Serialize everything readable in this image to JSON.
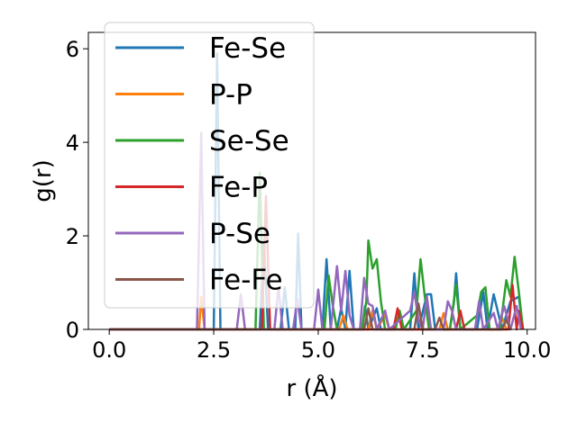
{
  "chart_data": {
    "type": "line",
    "xlabel": "r (Å)",
    "ylabel": "g(r)",
    "xlim": [
      -0.5,
      10.2
    ],
    "ylim": [
      0,
      6.35
    ],
    "xticks": [
      0.0,
      2.5,
      5.0,
      7.5,
      10.0
    ],
    "xtick_labels": [
      "0.0",
      "2.5",
      "5.0",
      "7.5",
      "10.0"
    ],
    "yticks": [
      0,
      2,
      4,
      6
    ],
    "ytick_labels": [
      "0",
      "2",
      "4",
      "6"
    ],
    "grid": false,
    "legend_position": "upper-left",
    "series": [
      {
        "name": "Fe-Se",
        "color": "#1f77b4",
        "points": [
          [
            0,
            0
          ],
          [
            2.5,
            0
          ],
          [
            2.58,
            5.9
          ],
          [
            2.66,
            0
          ],
          [
            3.6,
            0
          ],
          [
            3.7,
            1.9
          ],
          [
            3.8,
            0
          ],
          [
            4.1,
            0
          ],
          [
            4.2,
            0.9
          ],
          [
            4.3,
            0
          ],
          [
            4.45,
            0
          ],
          [
            4.52,
            2.05
          ],
          [
            4.6,
            0
          ],
          [
            5.1,
            0
          ],
          [
            5.2,
            1.5
          ],
          [
            5.3,
            0
          ],
          [
            5.45,
            0
          ],
          [
            5.55,
            0.45
          ],
          [
            5.65,
            0
          ],
          [
            5.75,
            1.25
          ],
          [
            5.85,
            0
          ],
          [
            6.05,
            0
          ],
          [
            6.12,
            0.5
          ],
          [
            6.2,
            0
          ],
          [
            6.4,
            0.45
          ],
          [
            6.5,
            0
          ],
          [
            7.2,
            0
          ],
          [
            7.3,
            1.2
          ],
          [
            7.4,
            0
          ],
          [
            7.6,
            0.75
          ],
          [
            7.7,
            0.75
          ],
          [
            7.8,
            0
          ],
          [
            8.15,
            0
          ],
          [
            8.25,
            0.6
          ],
          [
            8.3,
            1.2
          ],
          [
            8.4,
            0
          ],
          [
            8.8,
            0
          ],
          [
            8.95,
            0.8
          ],
          [
            9.05,
            0
          ],
          [
            9.2,
            0.75
          ],
          [
            9.4,
            0
          ],
          [
            9.6,
            0.6
          ],
          [
            9.8,
            0.7
          ],
          [
            9.9,
            0
          ]
        ]
      },
      {
        "name": "P-P",
        "color": "#ff7f0e",
        "points": [
          [
            0,
            0
          ],
          [
            2.15,
            0
          ],
          [
            2.2,
            0.7
          ],
          [
            2.28,
            0
          ],
          [
            5.5,
            0
          ],
          [
            5.6,
            0.3
          ],
          [
            5.7,
            0
          ],
          [
            6.2,
            0
          ],
          [
            6.3,
            0.4
          ],
          [
            6.4,
            0
          ],
          [
            6.6,
            0.3
          ],
          [
            6.7,
            0
          ],
          [
            7.9,
            0
          ],
          [
            8.0,
            0.35
          ],
          [
            8.1,
            0
          ],
          [
            9.3,
            0
          ],
          [
            9.4,
            0.25
          ],
          [
            9.5,
            0
          ]
        ]
      },
      {
        "name": "Se-Se",
        "color": "#2ca02c",
        "points": [
          [
            0,
            0
          ],
          [
            3.5,
            0
          ],
          [
            3.6,
            3.35
          ],
          [
            3.7,
            0
          ],
          [
            5.15,
            0
          ],
          [
            5.25,
            1.15
          ],
          [
            5.35,
            0.5
          ],
          [
            5.45,
            0
          ],
          [
            6.05,
            0
          ],
          [
            6.15,
            0.6
          ],
          [
            6.2,
            1.9
          ],
          [
            6.3,
            1.3
          ],
          [
            6.4,
            1.5
          ],
          [
            6.5,
            0.6
          ],
          [
            6.6,
            0
          ],
          [
            6.85,
            0
          ],
          [
            6.95,
            0.4
          ],
          [
            7.05,
            0
          ],
          [
            7.35,
            0.4
          ],
          [
            7.45,
            1.5
          ],
          [
            7.55,
            0.7
          ],
          [
            7.65,
            0
          ],
          [
            8.15,
            0
          ],
          [
            8.3,
            0.95
          ],
          [
            8.4,
            0
          ],
          [
            8.8,
            0.3
          ],
          [
            8.9,
            0.8
          ],
          [
            9.0,
            0.9
          ],
          [
            9.1,
            0
          ],
          [
            9.35,
            0
          ],
          [
            9.5,
            1.05
          ],
          [
            9.6,
            0.7
          ],
          [
            9.7,
            1.55
          ],
          [
            9.8,
            0.8
          ],
          [
            9.9,
            0
          ]
        ]
      },
      {
        "name": "Fe-P",
        "color": "#d62728",
        "points": [
          [
            0,
            0
          ],
          [
            3.65,
            0
          ],
          [
            3.75,
            2.85
          ],
          [
            3.85,
            0
          ],
          [
            6.8,
            0
          ],
          [
            6.9,
            0.45
          ],
          [
            7.0,
            0
          ],
          [
            8.3,
            0
          ],
          [
            8.4,
            0.4
          ],
          [
            8.5,
            0
          ],
          [
            9.55,
            0
          ],
          [
            9.65,
            0.95
          ],
          [
            9.75,
            0
          ],
          [
            9.8,
            0.4
          ],
          [
            9.9,
            0
          ]
        ]
      },
      {
        "name": "P-Se",
        "color": "#9467bd",
        "points": [
          [
            0,
            0
          ],
          [
            2.1,
            0
          ],
          [
            2.2,
            4.2
          ],
          [
            2.28,
            0
          ],
          [
            3.05,
            0
          ],
          [
            3.15,
            0.75
          ],
          [
            3.25,
            0
          ],
          [
            3.95,
            0
          ],
          [
            4.05,
            0.9
          ],
          [
            4.15,
            0
          ],
          [
            4.4,
            0
          ],
          [
            4.5,
            0.65
          ],
          [
            4.6,
            0
          ],
          [
            4.9,
            0
          ],
          [
            5.0,
            0.85
          ],
          [
            5.1,
            0
          ],
          [
            5.3,
            0
          ],
          [
            5.45,
            1.35
          ],
          [
            5.55,
            0.4
          ],
          [
            5.65,
            1.25
          ],
          [
            5.75,
            0.3
          ],
          [
            5.85,
            0
          ],
          [
            6.0,
            0
          ],
          [
            6.1,
            1.1
          ],
          [
            6.2,
            0.55
          ],
          [
            6.3,
            0.5
          ],
          [
            6.4,
            0
          ],
          [
            6.6,
            0.4
          ],
          [
            6.7,
            0
          ],
          [
            7.2,
            0.4
          ],
          [
            7.3,
            0.8
          ],
          [
            7.4,
            0.2
          ],
          [
            7.5,
            0
          ],
          [
            7.6,
            0.7
          ],
          [
            7.7,
            0
          ],
          [
            8.0,
            0
          ],
          [
            8.1,
            0.6
          ],
          [
            8.2,
            0.4
          ],
          [
            8.3,
            0
          ],
          [
            8.75,
            0
          ],
          [
            8.85,
            0.6
          ],
          [
            8.95,
            0
          ],
          [
            9.2,
            0.35
          ],
          [
            9.3,
            0
          ],
          [
            9.45,
            0.5
          ],
          [
            9.6,
            0
          ],
          [
            9.75,
            0.5
          ],
          [
            9.85,
            0
          ]
        ]
      },
      {
        "name": "Fe-Fe",
        "color": "#8c564b",
        "points": [
          [
            0,
            0
          ],
          [
            6.1,
            0
          ],
          [
            6.2,
            0.45
          ],
          [
            6.3,
            0
          ],
          [
            7.3,
            0
          ],
          [
            7.4,
            0.55
          ],
          [
            7.5,
            0
          ],
          [
            7.8,
            0
          ],
          [
            7.9,
            0.25
          ],
          [
            8.0,
            0
          ],
          [
            9.4,
            0
          ],
          [
            9.5,
            0.2
          ],
          [
            9.6,
            0
          ]
        ]
      }
    ]
  }
}
